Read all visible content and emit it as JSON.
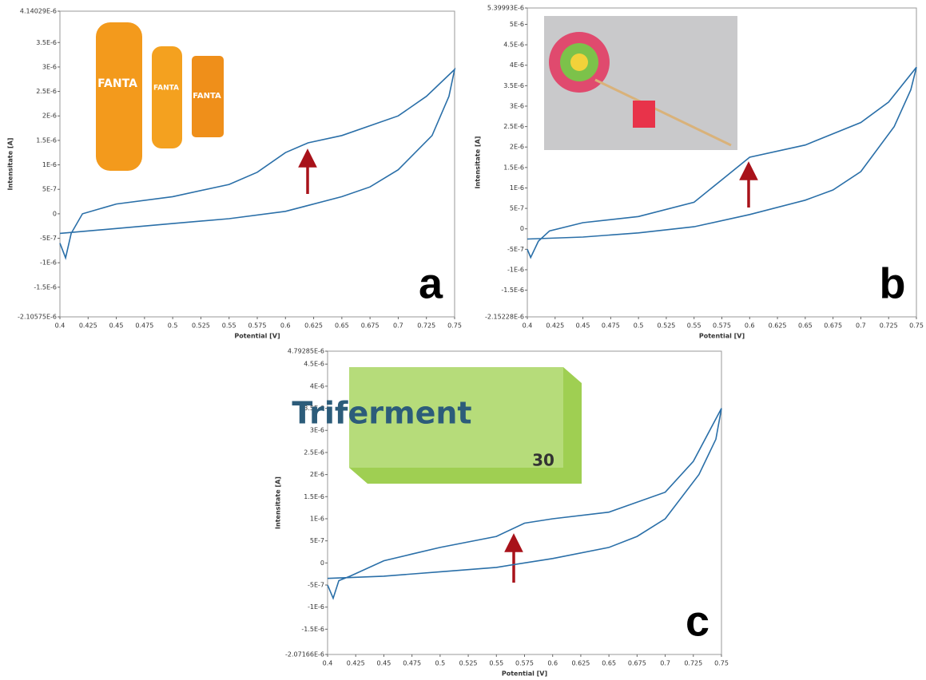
{
  "chart_data": [
    {
      "type": "line",
      "label": "a",
      "xlabel": "Potential [V]",
      "ylabel": "Intensitate [A]",
      "image_text": [
        "FANTA",
        "FANTA",
        "FANTA"
      ],
      "x": [
        0.4,
        0.405,
        0.41,
        0.42,
        0.45,
        0.5,
        0.55,
        0.575,
        0.6,
        0.62,
        0.65,
        0.7,
        0.725,
        0.75,
        0.745,
        0.73,
        0.7,
        0.675,
        0.65,
        0.6,
        0.55,
        0.5,
        0.45,
        0.4
      ],
      "series": [
        {
          "color": "#2a6fa8",
          "values": [
            -6e-07,
            -9e-07,
            -4e-07,
            0,
            2e-07,
            3.5e-07,
            6e-07,
            8.5e-07,
            1.25e-06,
            1.45e-06,
            1.6e-06,
            2e-06,
            2.4e-06,
            2.95e-06,
            2.4e-06,
            1.6e-06,
            9e-07,
            5.5e-07,
            3.5e-07,
            5e-08,
            -1e-07,
            -2e-07,
            -3e-07,
            -4e-07
          ]
        }
      ],
      "xlim": [
        0.4,
        0.75
      ],
      "xticks": [
        0.4,
        0.425,
        0.45,
        0.475,
        0.5,
        0.525,
        0.55,
        0.575,
        0.6,
        0.625,
        0.65,
        0.675,
        0.7,
        0.725,
        0.75
      ],
      "ylim": [
        -2.10575e-06,
        4.14029e-06
      ],
      "yticks": [
        {
          "value": -2.10575e-06,
          "label": "-2.10575E-6"
        },
        {
          "value": -1.5e-06,
          "label": "-1.5E-6"
        },
        {
          "value": -1e-06,
          "label": "-1E-6"
        },
        {
          "value": -5e-07,
          "label": "-5E-7"
        },
        0,
        {
          "value": 5e-07,
          "label": "5E-7"
        },
        {
          "value": 1e-06,
          "label": "1E-6"
        },
        {
          "value": 1.5e-06,
          "label": "1.5E-6"
        },
        {
          "value": 2e-06,
          "label": "2E-6"
        },
        {
          "value": 2.5e-06,
          "label": "2.5E-6"
        },
        {
          "value": 3e-06,
          "label": "3E-6"
        },
        {
          "value": 3.5e-06,
          "label": "3.5E-6"
        },
        {
          "value": 4.14029e-06,
          "label": "4.14029E-6"
        }
      ]
    },
    {
      "type": "line",
      "label": "b",
      "xlabel": "Potential [V]",
      "ylabel": "Intensitate [A]",
      "x": [
        0.4,
        0.403,
        0.41,
        0.42,
        0.45,
        0.5,
        0.55,
        0.575,
        0.6,
        0.65,
        0.7,
        0.725,
        0.75,
        0.745,
        0.73,
        0.7,
        0.675,
        0.65,
        0.6,
        0.55,
        0.5,
        0.45,
        0.4
      ],
      "series": [
        {
          "color": "#2a6fa8",
          "values": [
            -5e-07,
            -7e-07,
            -3e-07,
            -5e-08,
            1.5e-07,
            3e-07,
            6.5e-07,
            1.2e-06,
            1.75e-06,
            2.05e-06,
            2.6e-06,
            3.1e-06,
            3.95e-06,
            3.4e-06,
            2.5e-06,
            1.4e-06,
            9.5e-07,
            7e-07,
            3.5e-07,
            5e-08,
            -1e-07,
            -2e-07,
            -2.5e-07
          ]
        }
      ],
      "xlim": [
        0.4,
        0.75
      ],
      "xticks": [
        0.4,
        0.425,
        0.45,
        0.475,
        0.5,
        0.525,
        0.55,
        0.575,
        0.6,
        0.625,
        0.65,
        0.675,
        0.7,
        0.725,
        0.75
      ],
      "ylim": [
        -2.15228e-06,
        5.39993e-06
      ],
      "yticks": [
        {
          "value": -2.15228e-06,
          "label": "-2.15228E-6"
        },
        {
          "value": -1.5e-06,
          "label": "-1.5E-6"
        },
        {
          "value": -1e-06,
          "label": "-1E-6"
        },
        {
          "value": -5e-07,
          "label": "-5E-7"
        },
        0,
        {
          "value": 5e-07,
          "label": "5E-7"
        },
        {
          "value": 1e-06,
          "label": "1E-6"
        },
        {
          "value": 1.5e-06,
          "label": "1.5E-6"
        },
        {
          "value": 2e-06,
          "label": "2E-6"
        },
        {
          "value": 2.5e-06,
          "label": "2.5E-6"
        },
        {
          "value": 3e-06,
          "label": "3E-6"
        },
        {
          "value": 3.5e-06,
          "label": "3.5E-6"
        },
        {
          "value": 4e-06,
          "label": "4E-6"
        },
        {
          "value": 4.5e-06,
          "label": "4.5E-6"
        },
        {
          "value": 5e-06,
          "label": "5E-6"
        },
        {
          "value": 5.39993e-06,
          "label": "5.39993E-6"
        }
      ]
    },
    {
      "type": "line",
      "label": "c",
      "xlabel": "Potential [V]",
      "ylabel": "Intensitate [A]",
      "image_text": [
        "Triferment",
        "30"
      ],
      "x": [
        0.4,
        0.405,
        0.41,
        0.42,
        0.45,
        0.475,
        0.5,
        0.55,
        0.575,
        0.6,
        0.65,
        0.7,
        0.725,
        0.75,
        0.745,
        0.73,
        0.7,
        0.675,
        0.65,
        0.6,
        0.55,
        0.5,
        0.45,
        0.4
      ],
      "series": [
        {
          "color": "#2a6fa8",
          "values": [
            -5e-07,
            -8e-07,
            -4e-07,
            -3e-07,
            5e-08,
            2e-07,
            3.5e-07,
            6e-07,
            9e-07,
            1e-06,
            1.15e-06,
            1.6e-06,
            2.3e-06,
            3.5e-06,
            2.8e-06,
            2e-06,
            1e-06,
            6e-07,
            3.5e-07,
            1e-07,
            -1e-07,
            -2e-07,
            -3e-07,
            -3.5e-07
          ]
        }
      ],
      "xlim": [
        0.4,
        0.75
      ],
      "xticks": [
        0.4,
        0.425,
        0.45,
        0.475,
        0.5,
        0.525,
        0.55,
        0.575,
        0.6,
        0.625,
        0.65,
        0.675,
        0.7,
        0.725,
        0.75
      ],
      "ylim": [
        -2.07166e-06,
        4.79285e-06
      ],
      "yticks": [
        {
          "value": -2.07166e-06,
          "label": "-2.07166E-6"
        },
        {
          "value": -1.5e-06,
          "label": "-1.5E-6"
        },
        {
          "value": -1e-06,
          "label": "-1E-6"
        },
        {
          "value": -5e-07,
          "label": "-5E-7"
        },
        0,
        {
          "value": 5e-07,
          "label": "5E-7"
        },
        {
          "value": 1e-06,
          "label": "1E-6"
        },
        {
          "value": 1.5e-06,
          "label": "1.5E-6"
        },
        {
          "value": 2e-06,
          "label": "2E-6"
        },
        {
          "value": 2.5e-06,
          "label": "2.5E-6"
        },
        {
          "value": 3e-06,
          "label": "3E-6"
        },
        {
          "value": 3.5e-06,
          "label": "3.5E-6"
        },
        {
          "value": 4e-06,
          "label": "4E-6"
        },
        {
          "value": 4.5e-06,
          "label": "4.5E-6"
        },
        {
          "value": 4.79285e-06,
          "label": "4.79285E-6"
        }
      ]
    }
  ]
}
